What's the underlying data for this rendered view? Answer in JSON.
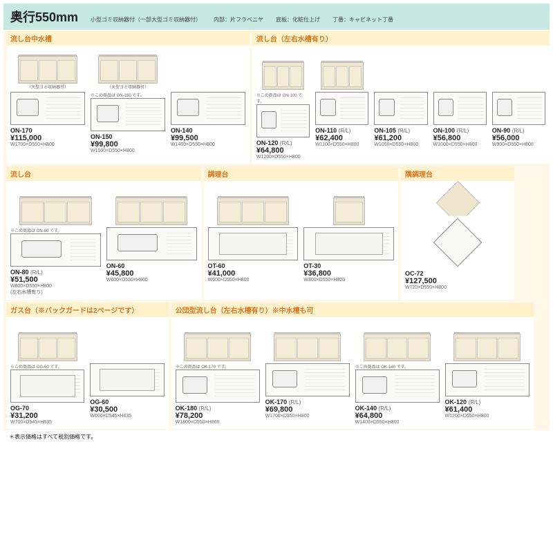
{
  "header": {
    "title": "奥行550mm",
    "specs": [
      "小型ゴミ収納器付（一部大型ゴミ収納器付）",
      "内部：片フラベニヤ",
      "底板：化粧仕上げ",
      "丁番：キャビネット丁番"
    ]
  },
  "sections": [
    {
      "title": "流し台中水槽",
      "width": "45%",
      "products": [
        {
          "model": "ON-170",
          "price": "¥115,000",
          "dims": "W1700×D550×H800",
          "cabinet_label": "（大型ゴミ収納器付）"
        },
        {
          "model": "ON-150",
          "price": "¥99,800",
          "dims": "W1500×D550×H800",
          "cabinet_label": "（大型ゴミ収納器付）",
          "note": "※この商品は ON-150 です。"
        },
        {
          "model": "ON-140",
          "price": "¥99,500",
          "dims": "W1400×D550×H800"
        }
      ]
    },
    {
      "title": "流し台（左右水槽有り）",
      "width": "55%",
      "products": [
        {
          "model": "ON-120",
          "variant": "(R/L)",
          "price": "¥64,800",
          "dims": "W1200×D550×H800",
          "note": "※この商品は ON-100 です。"
        },
        {
          "model": "ON-110",
          "variant": "(R/L)",
          "price": "¥62,400",
          "dims": "W1100×D550×H800"
        },
        {
          "model": "ON-105",
          "variant": "(R/L)",
          "price": "¥61,200",
          "dims": "W1050×D550×H800"
        },
        {
          "model": "ON-100",
          "variant": "(R/L)",
          "price": "¥56,800",
          "dims": "W1000×D550×H800"
        },
        {
          "model": "ON-90",
          "variant": "(R/L)",
          "price": "¥56,000",
          "dims": "W900×D550×H800"
        }
      ]
    }
  ],
  "row2": [
    {
      "title": "流し台",
      "width": "36%",
      "products": [
        {
          "model": "ON-80",
          "variant": "(R/L)",
          "price": "¥51,500",
          "dims": "W800×D550×H800",
          "subnote": "(左右水槽有り)",
          "note": "※この商品は ON-80 です。",
          "plantype": "plan-small"
        },
        {
          "model": "ON-60",
          "price": "¥45,800",
          "dims": "W600×D550×H800",
          "plantype": "plan-small"
        }
      ]
    },
    {
      "title": "調理台",
      "width": "36%",
      "products": [
        {
          "model": "OT-60",
          "price": "¥41,000",
          "dims": "W600×D550×H800",
          "plantype": "plan-nosink"
        },
        {
          "model": "OT-30",
          "price": "¥36,800",
          "dims": "W300×D550×H800",
          "plantype": "plan-nosink",
          "narrow": true
        }
      ]
    },
    {
      "title": "隅調理台",
      "width": "21%",
      "corner": true,
      "products": [
        {
          "model": "OC-72",
          "price": "¥127,500",
          "dims": "W720×D550×H800"
        }
      ]
    }
  ],
  "row3": [
    {
      "title": "ガス台（※バックガードは2ページです）",
      "width": "30%",
      "products": [
        {
          "model": "OG-70",
          "price": "¥31,200",
          "dims": "W700×D545×H635",
          "plantype": "plan-nosink",
          "note": "※この商品は OG-60 です。"
        },
        {
          "model": "OG-60",
          "price": "¥30,500",
          "dims": "W600×D545×H635",
          "plantype": "plan-nosink",
          "nothumb": true
        }
      ]
    },
    {
      "title": "公団型流し台（左右水槽有り）※中水槽も可",
      "width": "67%",
      "products": [
        {
          "model": "OK-180",
          "variant": "(R/L)",
          "price": "¥78,200",
          "dims": "W1800×D550×H800",
          "note": "※この商品は OK-170 です。"
        },
        {
          "model": "OK-170",
          "variant": "(R/L)",
          "price": "¥69,800",
          "dims": "W1700×D550×H800"
        },
        {
          "model": "OK-140",
          "variant": "(R/L)",
          "price": "¥64,800",
          "dims": "W1400×D550×H800",
          "note": "※この商品は OK-140 です。"
        },
        {
          "model": "OK-120",
          "variant": "(R/L)",
          "price": "¥61,400",
          "dims": "W1200×D550×H800"
        }
      ]
    }
  ],
  "footnote": "＊表示価格はすべて税別価格です。"
}
